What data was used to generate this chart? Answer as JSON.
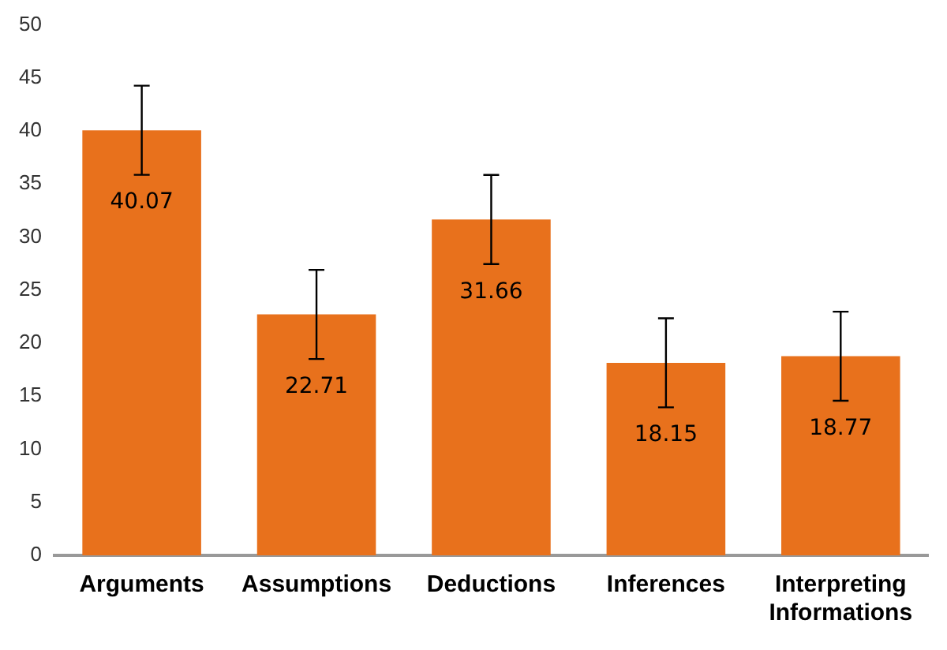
{
  "chart_data": {
    "type": "bar",
    "categories": [
      "Arguments",
      "Assumptions",
      "Deductions",
      "Inferences",
      "Interpreting Informations"
    ],
    "values": [
      40.07,
      22.71,
      31.66,
      18.15,
      18.77
    ],
    "errors": [
      4.2,
      4.2,
      4.2,
      4.2,
      4.2
    ],
    "color": "#e8711c",
    "data_labels": true,
    "grid": false,
    "legend": false,
    "ylim": [
      0,
      50
    ],
    "yticks": [
      0,
      5,
      10,
      15,
      20,
      25,
      30,
      35,
      40,
      45,
      50
    ]
  }
}
